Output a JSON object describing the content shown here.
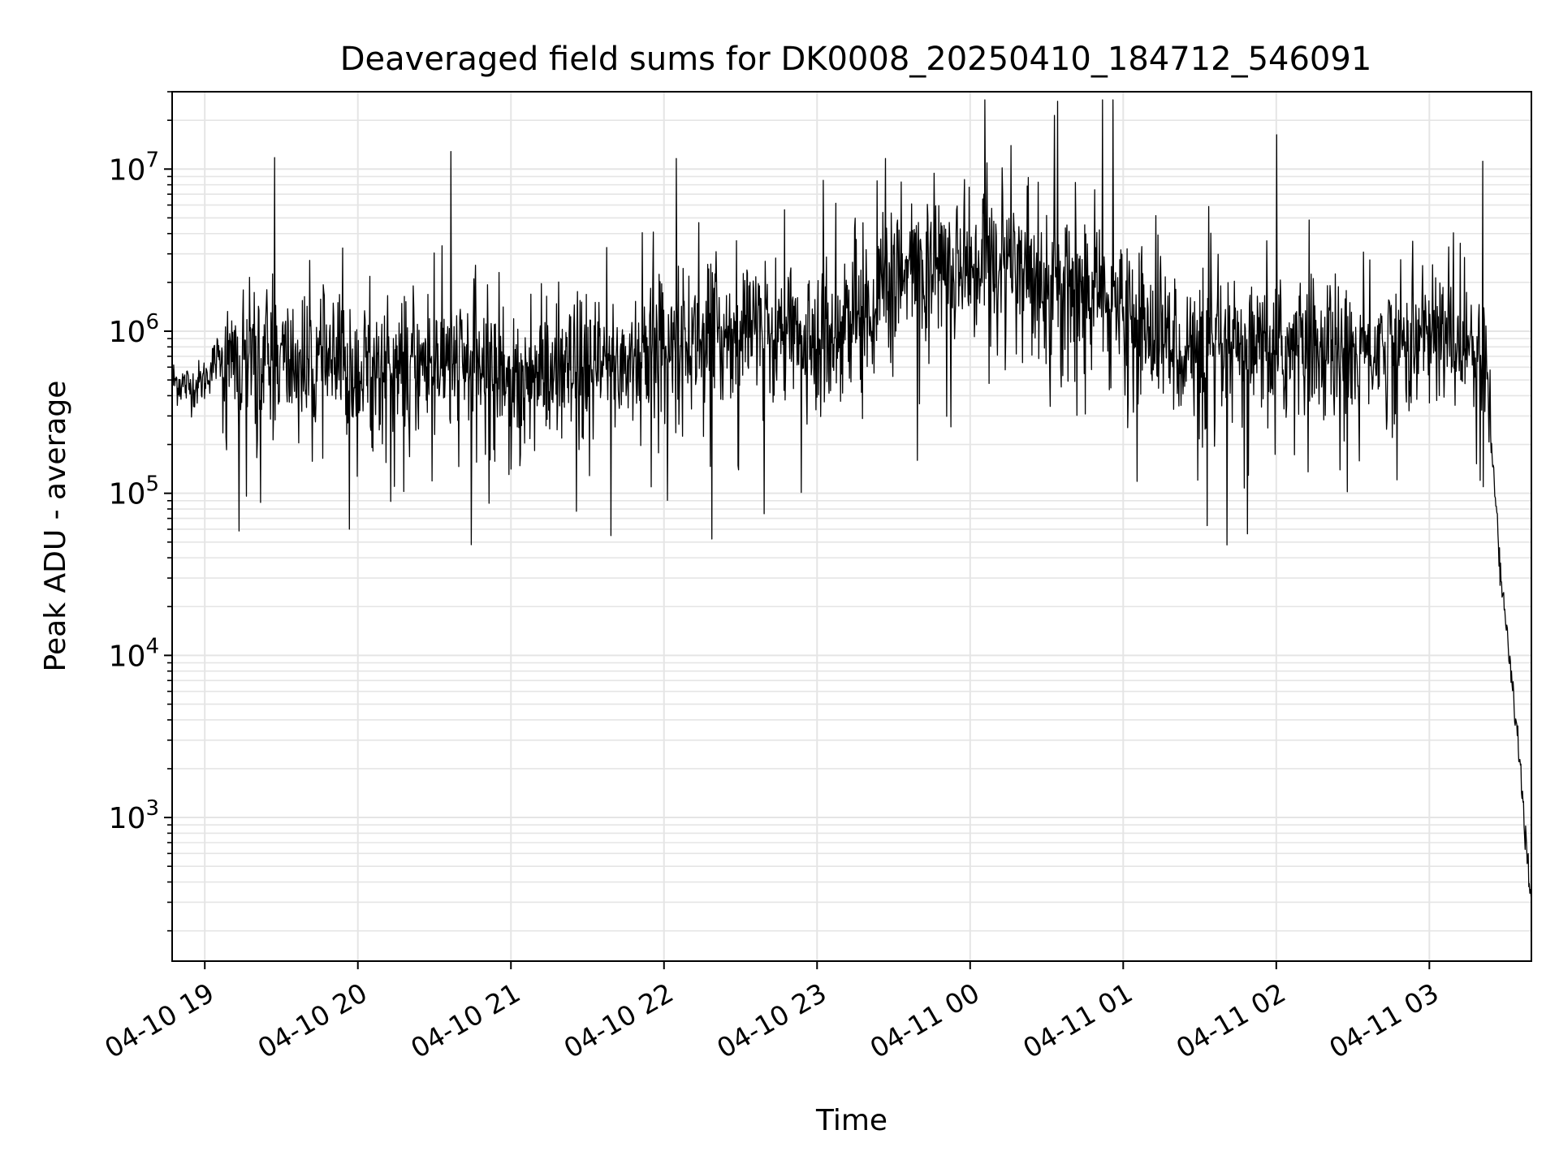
{
  "chart_data": {
    "type": "line",
    "title": "Deaveraged field sums for DK0008_20250410_184712_546091",
    "xlabel": "Time",
    "ylabel": "Peak ADU - average",
    "yscale": "log",
    "ylim": [
      130,
      30000000
    ],
    "xlim": [
      "2025-04-10 18:47:12",
      "2025-04-11 03:40:00"
    ],
    "grid": true,
    "line_color": "#000000",
    "grid_color": "#e5e5e5",
    "x_ticks": [
      {
        "t": "2025-04-10 19:00",
        "label": "04-10 19"
      },
      {
        "t": "2025-04-10 20:00",
        "label": "04-10 20"
      },
      {
        "t": "2025-04-10 21:00",
        "label": "04-10 21"
      },
      {
        "t": "2025-04-10 22:00",
        "label": "04-10 22"
      },
      {
        "t": "2025-04-10 23:00",
        "label": "04-10 23"
      },
      {
        "t": "2025-04-11 00:00",
        "label": "04-11 00"
      },
      {
        "t": "2025-04-11 01:00",
        "label": "04-11 01"
      },
      {
        "t": "2025-04-11 02:00",
        "label": "04-11 02"
      },
      {
        "t": "2025-04-11 03:00",
        "label": "04-11 03"
      }
    ],
    "y_ticks": [
      {
        "value": 1000,
        "base": "10",
        "exp": "3"
      },
      {
        "value": 10000,
        "base": "10",
        "exp": "4"
      },
      {
        "value": 100000,
        "base": "10",
        "exp": "5"
      },
      {
        "value": 1000000,
        "base": "10",
        "exp": "6"
      },
      {
        "value": 10000000,
        "base": "10",
        "exp": "7"
      }
    ],
    "series": [
      {
        "x": [
          "2025-04-10 18:47",
          "2025-04-10 18:55",
          "2025-04-10 19:00",
          "2025-04-10 19:05",
          "2025-04-10 19:10",
          "2025-04-10 19:15",
          "2025-04-10 19:20",
          "2025-04-10 19:25",
          "2025-04-10 19:30",
          "2025-04-10 19:40",
          "2025-04-10 19:50",
          "2025-04-10 20:00",
          "2025-04-10 20:15",
          "2025-04-10 20:30",
          "2025-04-10 20:45",
          "2025-04-10 21:00",
          "2025-04-10 21:15",
          "2025-04-10 21:30",
          "2025-04-10 21:45",
          "2025-04-10 22:00",
          "2025-04-10 22:15",
          "2025-04-10 22:30",
          "2025-04-10 22:45",
          "2025-04-10 23:00",
          "2025-04-10 23:15",
          "2025-04-10 23:30",
          "2025-04-10 23:45",
          "2025-04-11 00:00",
          "2025-04-11 00:15",
          "2025-04-11 00:30",
          "2025-04-11 00:45",
          "2025-04-11 01:00",
          "2025-04-11 01:15",
          "2025-04-11 01:30",
          "2025-04-11 01:45",
          "2025-04-11 02:00",
          "2025-04-11 02:15",
          "2025-04-11 02:30",
          "2025-04-11 02:45",
          "2025-04-11 03:00",
          "2025-04-11 03:10",
          "2025-04-11 03:18",
          "2025-04-11 03:22",
          "2025-04-11 03:25",
          "2025-04-11 03:28",
          "2025-04-11 03:31",
          "2025-04-11 03:34",
          "2025-04-11 03:37",
          "2025-04-11 03:40"
        ],
        "y": [
          500000,
          450000,
          500000,
          700000,
          600000,
          650000,
          650000,
          700000,
          650000,
          600000,
          600000,
          550000,
          600000,
          650000,
          600000,
          550000,
          500000,
          550000,
          650000,
          800000,
          900000,
          1000000,
          950000,
          900000,
          1200000,
          2000000,
          2500000,
          2800000,
          2600000,
          2200000,
          1800000,
          1300000,
          900000,
          700000,
          700000,
          750000,
          800000,
          750000,
          800000,
          900000,
          900000,
          800000,
          600000,
          150000,
          30000,
          12000,
          4000,
          1000,
          300
        ]
      }
    ],
    "noise_seed": 12345
  }
}
